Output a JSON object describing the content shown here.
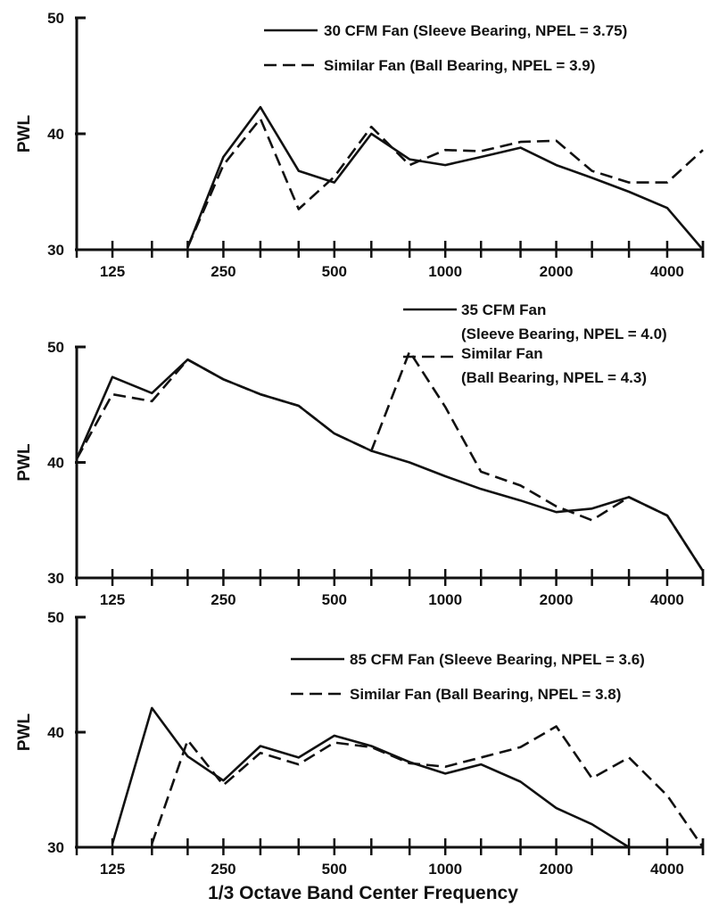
{
  "xlabel": "1/3 Octave Band Center Frequency",
  "chart_data": [
    {
      "type": "line",
      "ylabel": "PWL",
      "ylim": [
        30,
        50
      ],
      "yticks": [
        30,
        40,
        50
      ],
      "x_scale": "log",
      "xlim": [
        100,
        5000
      ],
      "xtick_labels": [
        "125",
        "250",
        "500",
        "1000",
        "2000",
        "4000"
      ],
      "legend_placement": "top-right",
      "series": [
        {
          "name": "30 CFM Fan (Sleeve Bearing, NPEL = 3.75)",
          "style": "solid",
          "x": [
            200,
            250,
            315,
            400,
            500,
            630,
            800,
            1000,
            1250,
            1600,
            2000,
            2500,
            3150,
            4000,
            5000
          ],
          "y": [
            30.2,
            38.0,
            42.3,
            36.8,
            35.8,
            40.0,
            37.8,
            37.3,
            38.0,
            38.8,
            37.3,
            36.2,
            35.0,
            33.6,
            30.0
          ]
        },
        {
          "name": "Similar Fan (Ball Bearing, NPEL = 3.9)",
          "style": "dashed",
          "x": [
            200,
            250,
            315,
            400,
            500,
            630,
            800,
            1000,
            1250,
            1600,
            2000,
            2500,
            3150,
            4000,
            5000
          ],
          "y": [
            30.2,
            37.3,
            41.3,
            33.5,
            36.3,
            40.6,
            37.3,
            38.6,
            38.5,
            39.3,
            39.4,
            36.8,
            35.8,
            35.8,
            38.6
          ]
        }
      ]
    },
    {
      "type": "line",
      "ylabel": "PWL",
      "ylim": [
        30,
        50
      ],
      "yticks": [
        30,
        40,
        50
      ],
      "x_scale": "log",
      "xlim": [
        100,
        5000
      ],
      "xtick_labels": [
        "125",
        "250",
        "500",
        "1000",
        "2000",
        "4000"
      ],
      "legend_placement": "top-right",
      "series": [
        {
          "name": "35 CFM Fan",
          "name_line2": "(Sleeve Bearing, NPEL = 4.0)",
          "style": "solid",
          "x": [
            100,
            125,
            160,
            200,
            250,
            315,
            400,
            500,
            630,
            800,
            1000,
            1250,
            1600,
            2000,
            2500,
            3150,
            4000,
            5000
          ],
          "y": [
            40.3,
            47.4,
            46.0,
            48.9,
            47.2,
            45.9,
            44.9,
            42.5,
            41.0,
            40.0,
            38.8,
            37.7,
            36.7,
            35.7,
            36.0,
            37.0,
            35.4,
            30.6
          ]
        },
        {
          "name": "Similar Fan",
          "name_line2": "(Ball Bearing, NPEL = 4.3)",
          "style": "dashed",
          "x": [
            100,
            125,
            160,
            200,
            250,
            315,
            400,
            500,
            630,
            800,
            1000,
            1250,
            1600,
            2000,
            2500,
            3150,
            4000,
            5000
          ],
          "y": [
            40.3,
            45.9,
            45.3,
            48.9,
            47.2,
            45.9,
            44.9,
            42.5,
            41.0,
            49.6,
            44.8,
            39.2,
            38.0,
            36.2,
            35.0,
            37.0,
            35.4,
            30.6
          ]
        }
      ]
    },
    {
      "type": "line",
      "ylabel": "PWL",
      "ylim": [
        30,
        50
      ],
      "yticks": [
        30,
        40,
        50
      ],
      "x_scale": "log",
      "xlim": [
        100,
        5000
      ],
      "xtick_labels": [
        "125",
        "250",
        "500",
        "1000",
        "2000",
        "4000"
      ],
      "legend_placement": "right",
      "series": [
        {
          "name": "85 CFM Fan (Sleeve Bearing, NPEL = 3.6)",
          "style": "solid",
          "x": [
            125,
            160,
            200,
            250,
            315,
            400,
            500,
            630,
            800,
            1000,
            1250,
            1600,
            2000,
            2500,
            3150
          ],
          "y": [
            30.3,
            42.1,
            37.9,
            35.8,
            38.8,
            37.8,
            39.7,
            38.8,
            37.4,
            36.4,
            37.2,
            35.7,
            33.4,
            32.0,
            30.0
          ]
        },
        {
          "name": "Similar Fan (Ball Bearing, NPEL = 3.8)",
          "style": "dashed",
          "x": [
            160,
            200,
            250,
            315,
            400,
            500,
            630,
            800,
            1000,
            1250,
            1600,
            2000,
            2500,
            3150,
            4000,
            5000
          ],
          "y": [
            30.3,
            39.3,
            35.4,
            38.2,
            37.2,
            39.1,
            38.7,
            37.3,
            37.0,
            37.8,
            38.7,
            40.5,
            36.0,
            37.8,
            34.5,
            30.0
          ]
        }
      ]
    }
  ]
}
